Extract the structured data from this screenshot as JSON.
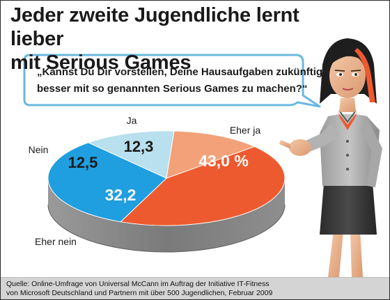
{
  "title": {
    "line1": "Jeder zweite Jugendliche lernt lieber",
    "line2": "mit Serious Games"
  },
  "question": {
    "line1": "„Kannst Du Dir vorstellen, Deine Hausaufgaben zukünftig",
    "line2": "besser mit so genannten Serious Games zu machen?“"
  },
  "chart_data": {
    "type": "pie",
    "categories": [
      "Eher ja",
      "Eher nein",
      "Nein",
      "Ja"
    ],
    "values": [
      43.0,
      32.2,
      12.5,
      12.3
    ],
    "value_labels": [
      "43,0 %",
      "32,2",
      "12,5",
      "12,3"
    ],
    "colors": [
      "#ee5a2f",
      "#1f9ee0",
      "#b8e0ee",
      "#f3a178"
    ],
    "title": "",
    "style": "3d"
  },
  "footer": {
    "line1": "Quelle: Online-Umfrage von Universal McCann im Auftrag der Initiative IT-Fitness",
    "line2": "von Microsoft Deutschland und Partnern mit über 500 Jugendlichen, Februar 2009"
  },
  "colors": {
    "pie_side": "#8a8a8a",
    "bubble_border": "#6ab8de",
    "accent_orange": "#ee5a2f"
  },
  "icons": [
    "speech-bubble-icon",
    "pointing-woman-illustration"
  ]
}
